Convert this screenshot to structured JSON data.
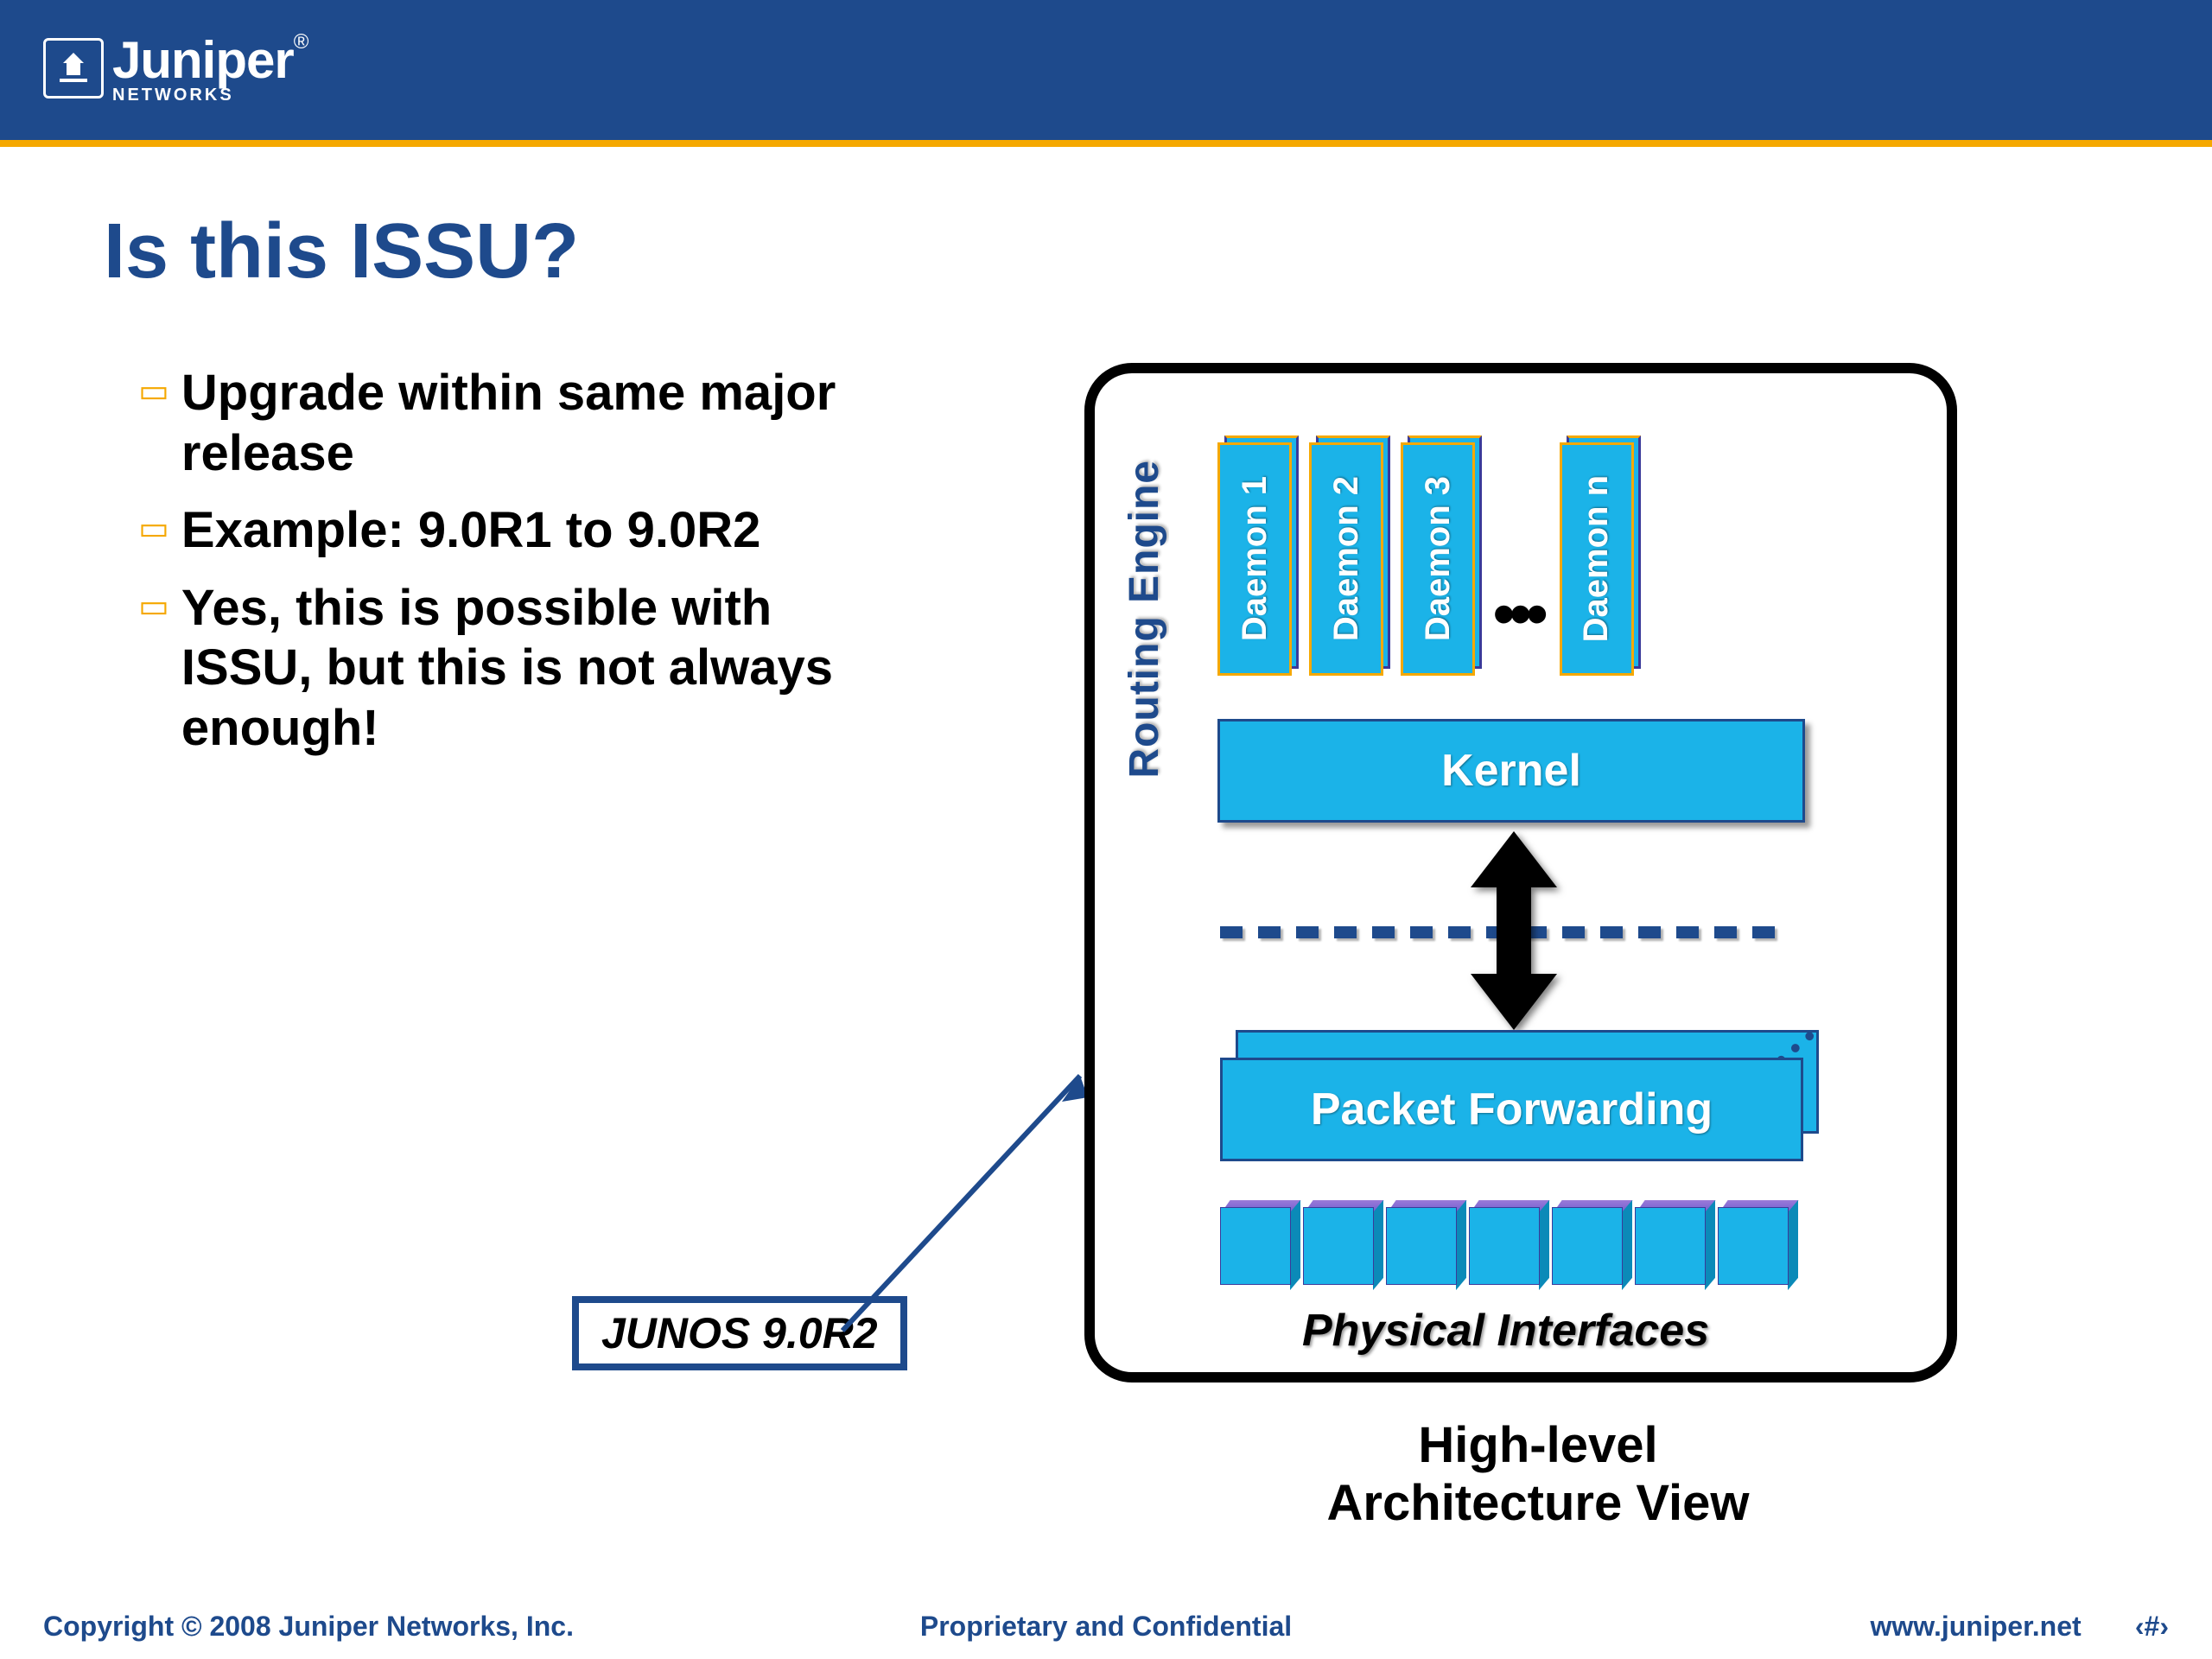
{
  "brand": {
    "name": "Juniper",
    "subtitle": "NETWORKS"
  },
  "title": "Is this ISSU?",
  "bullets": [
    "Upgrade within same major release",
    "Example: 9.0R1 to 9.0R2",
    "Yes, this is possible with ISSU, but this is not always enough!"
  ],
  "junos_label": "JUNOS 9.0R2",
  "diagram": {
    "routing_engine": "Routing Engine",
    "daemons": [
      "Daemon 1",
      "Daemon 2",
      "Daemon 3",
      "Daemon n"
    ],
    "kernel": "Kernel",
    "packet_forwarding": "Packet Forwarding",
    "physical_interfaces": "Physical Interfaces",
    "physical_cube_count": 7,
    "dash_count": 15,
    "colors": {
      "block_fill": "#1bb3e8",
      "block_border_orange": "#f5a800",
      "block_border_blue": "#1e4a8c",
      "cube_top": "#6a5acd",
      "text_white": "#ffffff"
    }
  },
  "caption_line1": "High-level",
  "caption_line2": "Architecture View",
  "footer": {
    "left": "Copyright © 2008 Juniper Networks, Inc.",
    "center": "Proprietary and Confidential",
    "right_url": "www.juniper.net",
    "right_page": "‹#›"
  },
  "theme": {
    "header_bg": "#1e4a8c",
    "accent": "#f5a800",
    "title_color": "#1e4a8c"
  }
}
